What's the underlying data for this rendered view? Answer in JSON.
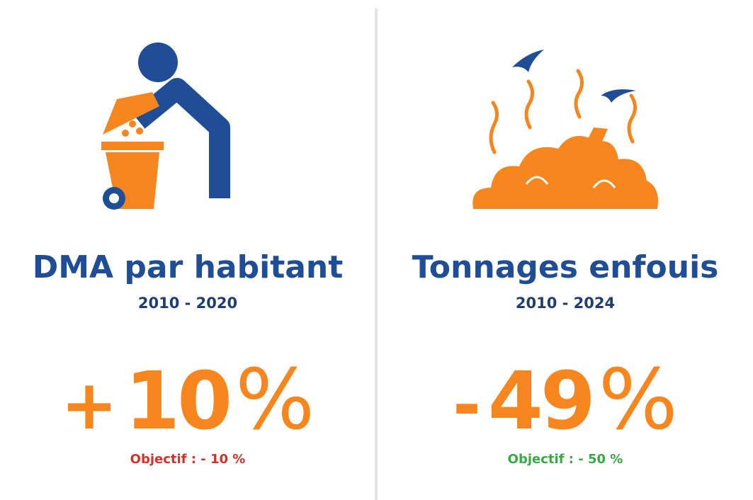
{
  "panels": [
    {
      "title": "DMA par habitant",
      "period": "2010 - 2020",
      "sign": "+",
      "number": "10",
      "unit": "%",
      "objective": "Objectif : - 10 %"
    },
    {
      "title": "Tonnages enfouis",
      "period": "2010 - 2024",
      "sign": "-",
      "number": "49",
      "unit": "%",
      "objective": "Objectif : - 50 %"
    }
  ]
}
